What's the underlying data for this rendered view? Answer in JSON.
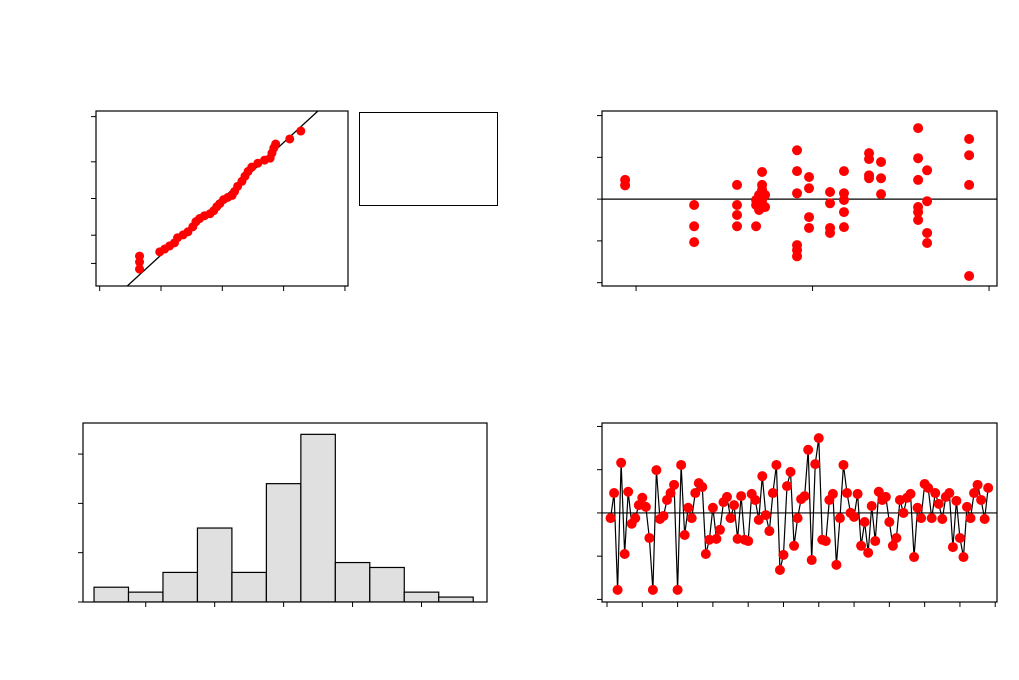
{
  "chart_data": [
    {
      "type": "probability",
      "color": "#ff0000",
      "x": [
        -1.35,
        -1.35,
        -1.35,
        -1.02,
        -0.94,
        -0.86,
        -0.78,
        -0.73,
        -0.64,
        -0.56,
        -0.48,
        -0.43,
        -0.37,
        -0.29,
        -0.2,
        -0.14,
        -0.09,
        -0.04,
        0.02,
        0.09,
        0.16,
        0.2,
        0.25,
        0.32,
        0.37,
        0.42,
        0.48,
        0.58,
        0.69,
        0.78,
        0.81,
        0.84,
        0.87,
        1.1,
        1.28
      ],
      "y": [
        -2.5,
        -2.25,
        -2.04,
        -1.89,
        -1.79,
        -1.68,
        -1.57,
        -1.39,
        -1.29,
        -1.18,
        -1.0,
        -0.82,
        -0.71,
        -0.61,
        -0.54,
        -0.43,
        -0.29,
        -0.18,
        -0.04,
        0.04,
        0.11,
        0.25,
        0.43,
        0.61,
        0.79,
        0.96,
        1.11,
        1.25,
        1.36,
        1.43,
        1.61,
        1.79,
        1.93,
        2.11,
        2.39
      ],
      "fit_line": {
        "x": [
          -1.55,
          1.56
        ],
        "y": [
          -3.1,
          3.1
        ]
      },
      "xlim": [
        -2.06,
        2.05
      ],
      "xticks": [
        -2,
        -1,
        0,
        1,
        2
      ],
      "ylim": [
        -3.1,
        3.1
      ],
      "yticks": [
        -2.3,
        -1.3,
        0,
        1.3,
        2.9
      ]
    },
    {
      "type": "scatter",
      "color": "#ff0000",
      "hline": 0,
      "x": [
        9.38,
        9.38,
        13.29,
        13.29,
        13.29,
        15.72,
        15.72,
        15.72,
        15.72,
        16.8,
        16.8,
        16.8,
        16.97,
        16.97,
        17.14,
        17.14,
        17.14,
        17.14,
        17.14,
        17.31,
        17.31,
        19.12,
        19.12,
        19.12,
        19.12,
        19.12,
        19.12,
        19.8,
        19.8,
        19.8,
        19.8,
        20.99,
        20.99,
        20.99,
        20.99,
        21.78,
        21.78,
        21.78,
        21.78,
        21.78,
        23.2,
        23.2,
        23.2,
        23.2,
        23.88,
        23.88,
        23.88,
        25.98,
        25.98,
        25.98,
        25.98,
        25.98,
        25.98,
        26.49,
        26.49,
        26.49,
        26.49,
        28.87,
        28.87,
        28.87,
        28.87
      ],
      "y": [
        0.46,
        0.33,
        -0.14,
        -0.65,
        -1.03,
        0.34,
        -0.14,
        -0.38,
        -0.65,
        -0.02,
        -0.14,
        -0.65,
        0.1,
        -0.26,
        0.65,
        0.34,
        0.22,
        -0.02,
        -0.14,
        0.1,
        -0.19,
        1.17,
        0.67,
        0.14,
        -1.1,
        -1.22,
        -1.37,
        0.53,
        0.26,
        -0.43,
        -0.69,
        0.17,
        -0.1,
        -0.69,
        -0.81,
        0.67,
        0.14,
        -0.02,
        -0.31,
        -0.67,
        1.1,
        0.96,
        0.57,
        0.5,
        0.89,
        0.5,
        0.12,
        1.7,
        0.98,
        0.46,
        -0.19,
        -0.31,
        -0.5,
        0.69,
        -0.05,
        -0.81,
        -1.05,
        1.44,
        1.05,
        0.34,
        -1.84
      ],
      "xlim": [
        8.07,
        30.45
      ],
      "xticks": [
        10,
        20,
        30
      ],
      "ylim": [
        -2.08,
        2.11
      ],
      "yticks": [
        -2,
        -1,
        0,
        1,
        2
      ]
    },
    {
      "type": "histogram",
      "color": "#e0e0e0",
      "bins": [
        -2.75,
        -2.25,
        -1.75,
        -1.25,
        -0.75,
        -0.25,
        0.25,
        0.75,
        1.25,
        1.75,
        2.25,
        2.75
      ],
      "counts": [
        3,
        2,
        6,
        15,
        6,
        24,
        34,
        8,
        7,
        2,
        1
      ],
      "xlim": [
        -2.91,
        2.95
      ],
      "xticks": [
        -2,
        -1,
        0,
        1,
        2
      ],
      "ylim": [
        0,
        36.3
      ],
      "yticks": [
        0,
        10,
        20,
        30
      ]
    },
    {
      "type": "line",
      "color": "#ff0000",
      "hline": 0,
      "x": [
        1,
        2,
        3,
        4,
        5,
        6,
        7,
        8,
        9,
        10,
        11,
        12,
        13,
        14,
        15,
        16,
        17,
        18,
        19,
        20,
        21,
        22,
        23,
        24,
        25,
        26,
        27,
        28,
        29,
        30,
        31,
        32,
        33,
        34,
        35,
        36,
        37,
        38,
        39,
        40,
        41,
        42,
        43,
        44,
        45,
        46,
        47,
        48,
        49,
        50,
        51,
        52,
        53,
        54,
        55,
        56,
        57,
        58,
        59,
        60,
        61,
        62,
        63,
        64,
        65,
        66,
        67,
        68,
        69,
        70,
        71,
        72,
        73,
        74,
        75,
        76,
        77,
        78,
        79,
        80,
        81,
        82,
        83,
        84,
        85,
        86,
        87,
        88,
        89,
        90,
        91,
        92,
        93,
        94,
        95,
        96,
        97,
        98,
        99,
        100,
        101,
        102,
        103,
        104,
        105,
        106,
        107,
        108
      ],
      "values": [
        -0.12,
        0.46,
        -1.78,
        1.16,
        -0.95,
        0.49,
        -0.25,
        -0.12,
        0.18,
        0.35,
        0.14,
        -0.58,
        -1.78,
        0.99,
        -0.14,
        -0.07,
        0.3,
        0.46,
        0.65,
        -1.78,
        1.11,
        -0.51,
        0.12,
        -0.12,
        0.46,
        0.69,
        0.6,
        -0.95,
        -0.62,
        0.12,
        -0.6,
        -0.39,
        0.25,
        0.37,
        -0.12,
        0.18,
        -0.6,
        0.39,
        -0.62,
        -0.65,
        0.44,
        0.3,
        -0.16,
        0.85,
        -0.05,
        -0.42,
        0.46,
        1.11,
        -1.32,
        -0.97,
        0.62,
        0.95,
        -0.76,
        -0.12,
        0.32,
        0.39,
        1.46,
        -1.09,
        1.13,
        1.73,
        -0.62,
        -0.65,
        0.3,
        0.44,
        -1.2,
        -0.12,
        1.11,
        0.46,
        0.0,
        -0.09,
        0.44,
        -0.76,
        -0.21,
        -0.92,
        0.16,
        -0.65,
        0.49,
        0.3,
        0.37,
        -0.21,
        -0.76,
        -0.58,
        0.3,
        0.0,
        0.35,
        0.44,
        -1.02,
        0.12,
        -0.12,
        0.67,
        0.58,
        -0.12,
        0.46,
        0.21,
        -0.14,
        0.37,
        0.46,
        -0.79,
        0.28,
        -0.58,
        -1.02,
        0.14,
        -0.12,
        0.46,
        0.65,
        0.3,
        -0.14,
        0.58
      ],
      "xlim": [
        -1.42,
        110.5
      ],
      "xticks": [
        0,
        10,
        20,
        30,
        40,
        50,
        60,
        70,
        80,
        90,
        100,
        110
      ],
      "ylim": [
        -2.06,
        2.08
      ],
      "yticks": [
        -2,
        -1,
        0,
        1,
        2
      ]
    }
  ]
}
